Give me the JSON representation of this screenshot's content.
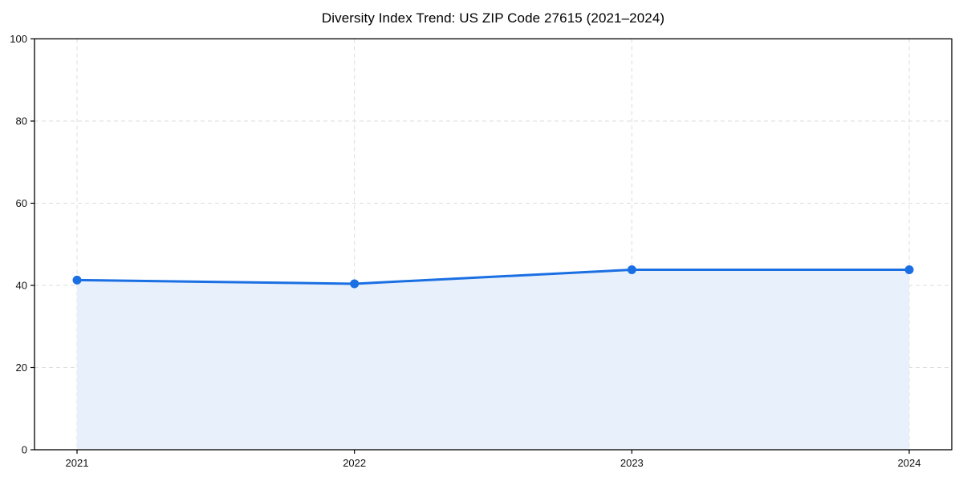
{
  "chart": {
    "title": "Diversity Index Trend: US ZIP Code 27615 (2021–2024)"
  },
  "chart_data": {
    "type": "area",
    "categories": [
      "2021",
      "2022",
      "2023",
      "2024"
    ],
    "series": [
      {
        "name": "Diversity Index",
        "values": [
          41.3,
          40.4,
          43.8,
          43.8
        ]
      }
    ],
    "title": "Diversity Index Trend: US ZIP Code 27615 (2021–2024)",
    "xlabel": "",
    "ylabel": "",
    "ylim": [
      0,
      100
    ],
    "yticks": [
      0,
      20,
      40,
      60,
      80,
      100
    ],
    "grid": "dashed",
    "legend": "none",
    "marker": "circle",
    "colors": {
      "line": "#1a6fe3",
      "marker": "#1a6fe3",
      "fill": "#e8f0fc",
      "grid": "#dcdcdc",
      "axis": "#000000",
      "text": "#111111"
    }
  }
}
